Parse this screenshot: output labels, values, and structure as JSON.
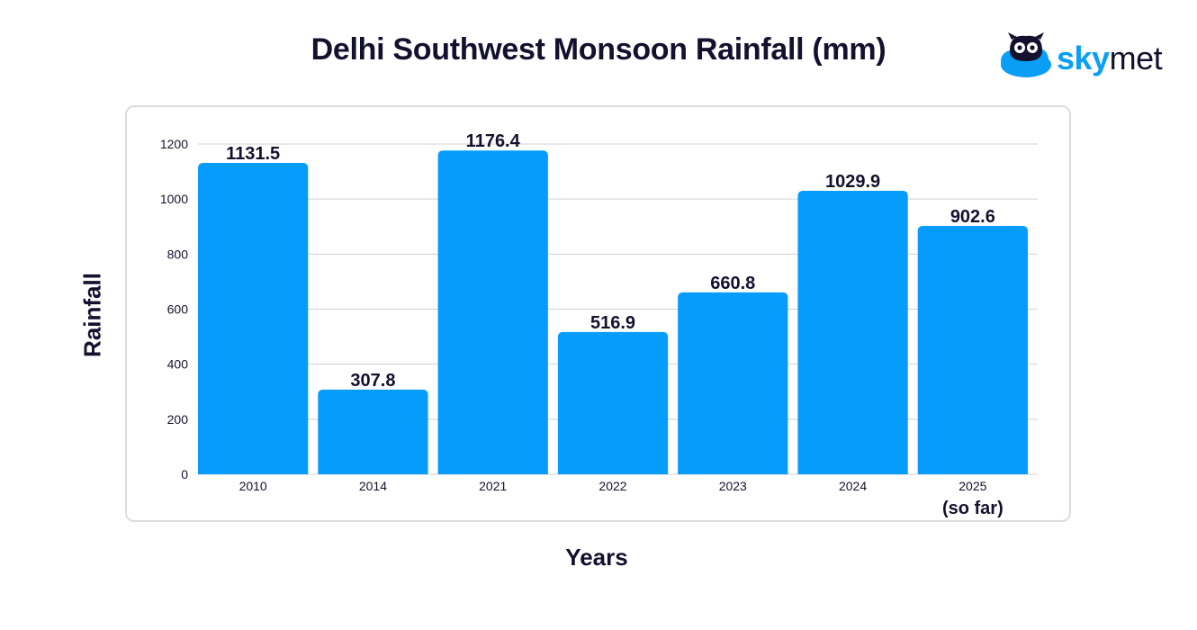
{
  "chart_data": {
    "type": "bar",
    "title": "Delhi Southwest Monsoon Rainfall (mm)",
    "xlabel": "Years",
    "ylabel": "Rainfall",
    "categories": [
      "2010",
      "2014",
      "2021",
      "2022",
      "2023",
      "2024",
      "2025\n(so far)"
    ],
    "values": [
      1131.5,
      307.8,
      1176.4,
      516.9,
      660.8,
      1029.9,
      902.6
    ],
    "value_labels": [
      "1131.5",
      "307.8",
      "1176.4",
      "516.9",
      "660.8",
      "1029.9",
      "902.6"
    ],
    "yticks": [
      "0",
      "200",
      "400",
      "600",
      "800",
      "1000",
      "1200"
    ],
    "ylim": [
      0,
      1200
    ],
    "grid": true,
    "legend": "none",
    "colors": {
      "bar": "#069cfb",
      "grid": "#d0d0d0",
      "text": "#14112e"
    }
  },
  "logo": {
    "text_sky": "sky",
    "text_met": "met",
    "icon": "owl-cloud-icon"
  }
}
